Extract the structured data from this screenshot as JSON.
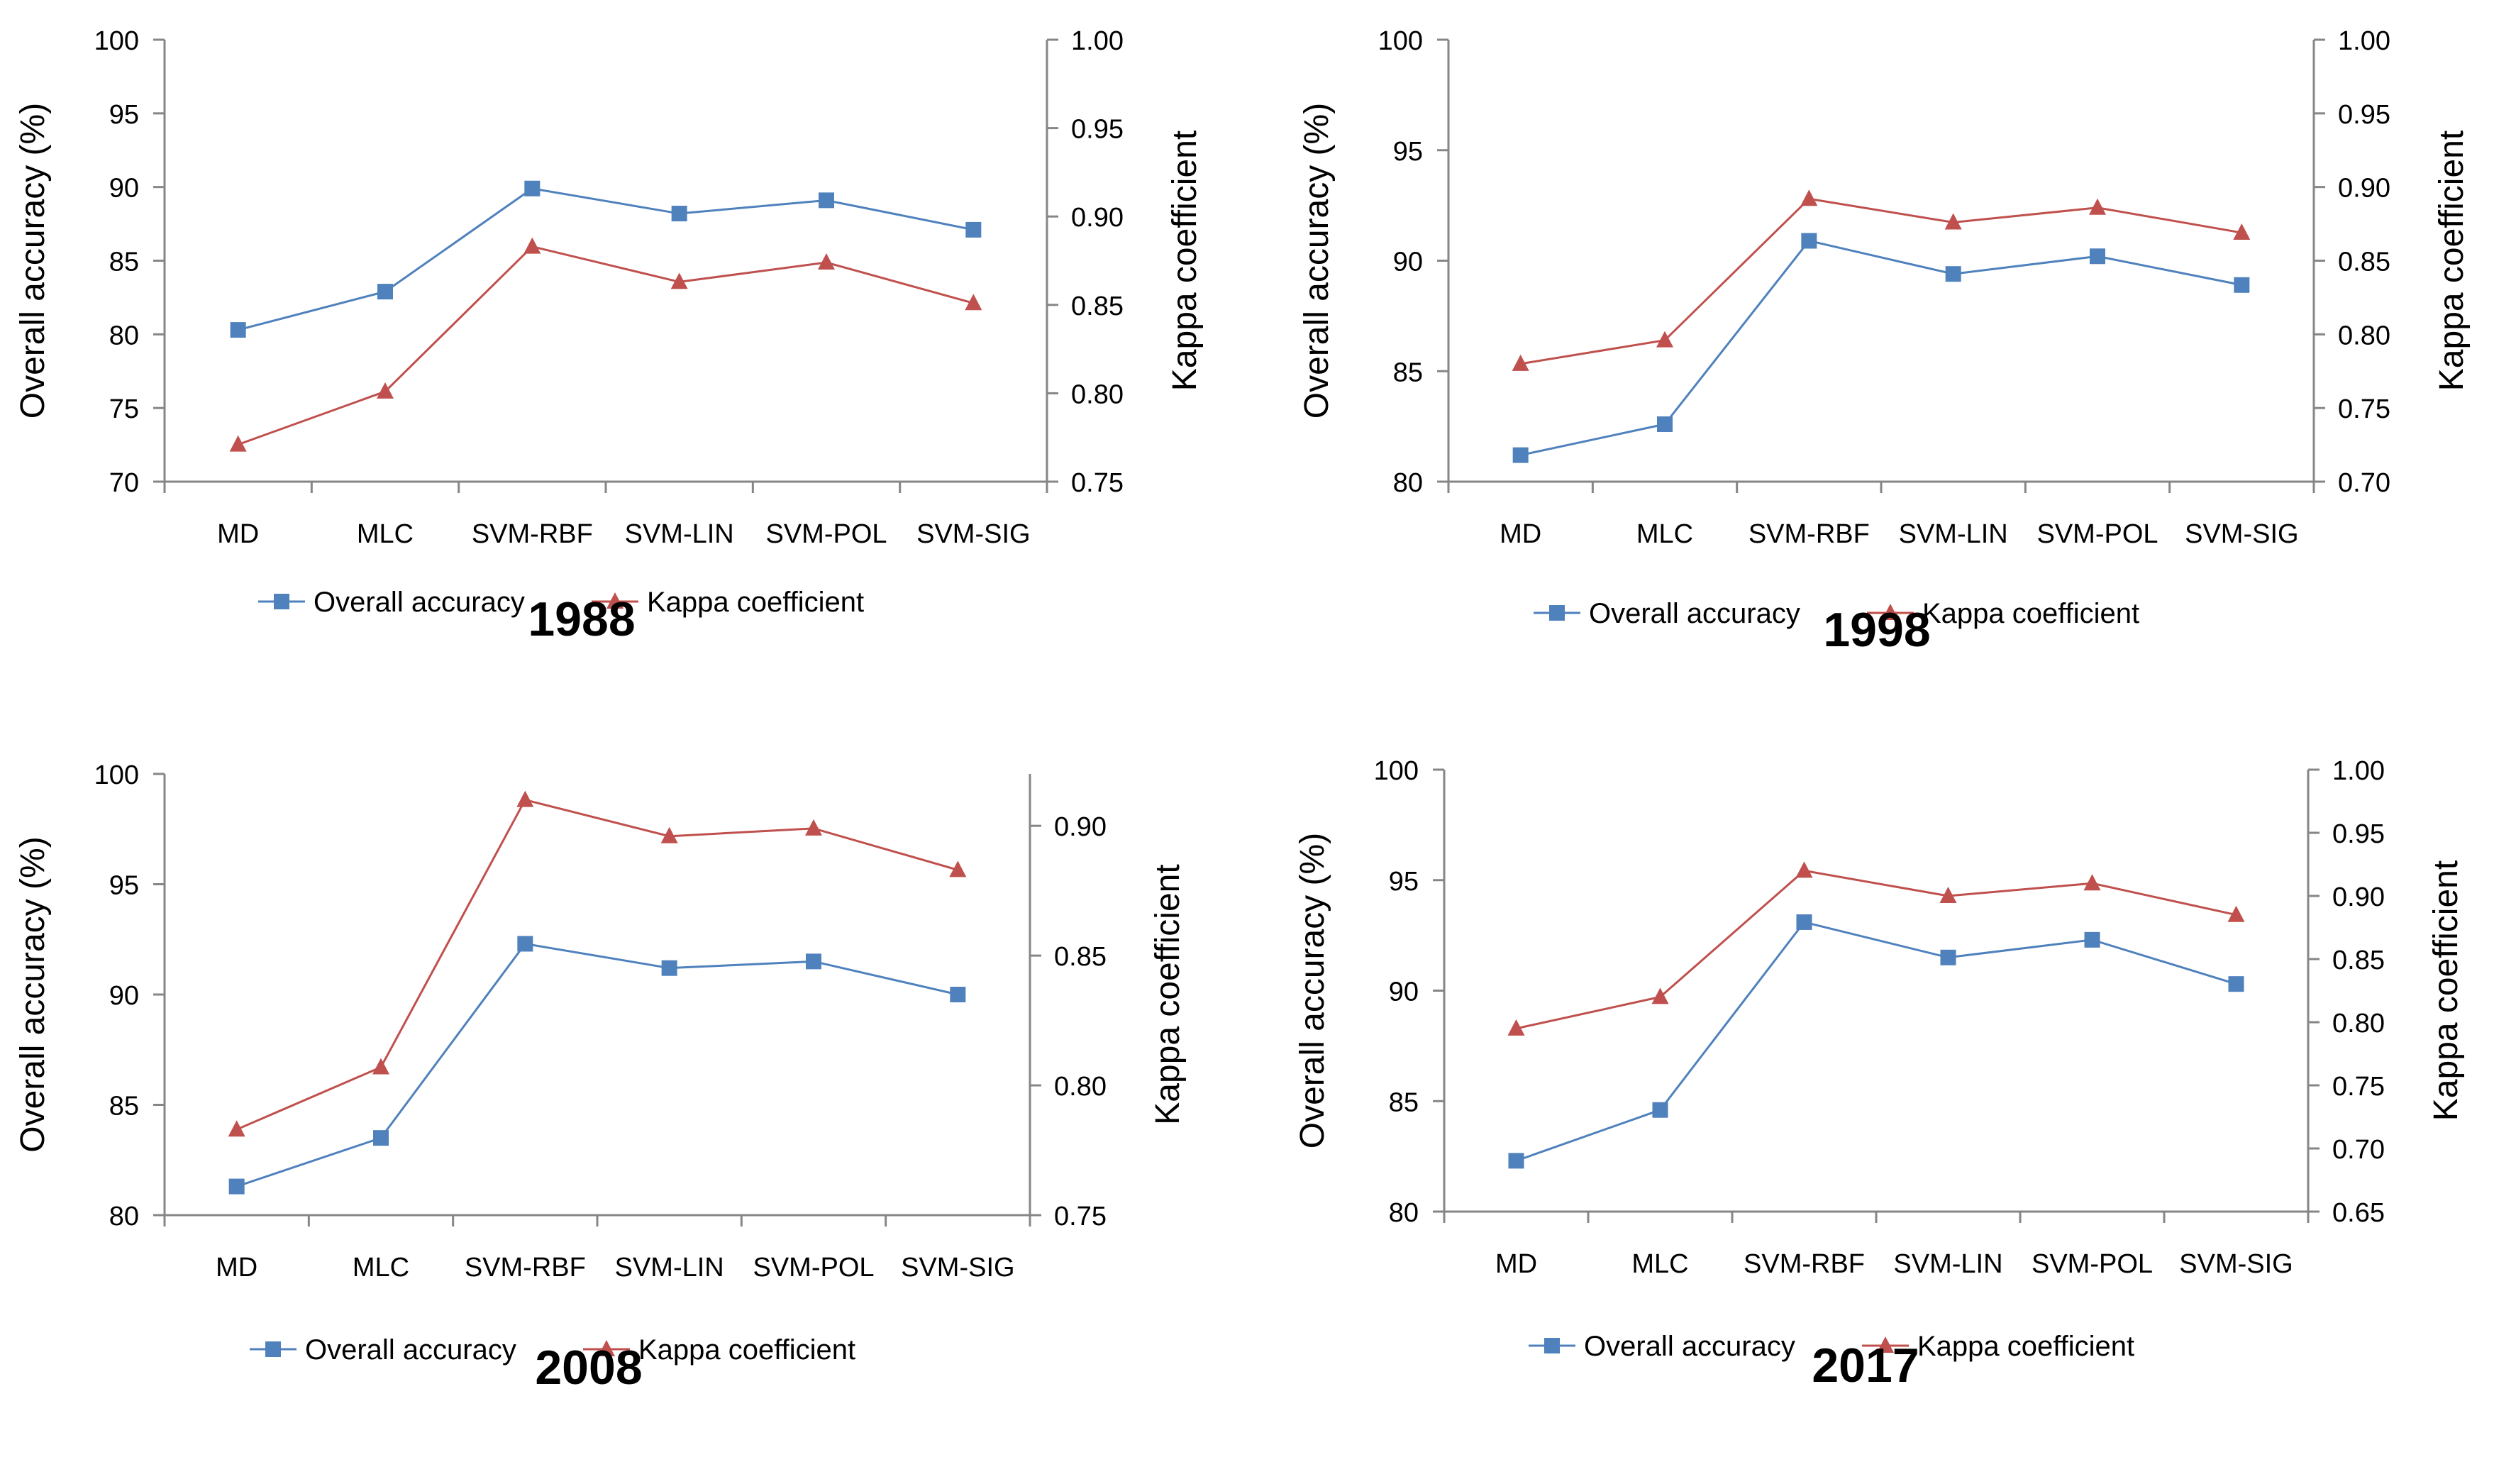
{
  "colors": {
    "accuracy": "#4F81BD",
    "kappa": "#C0504D",
    "axis": "#868686",
    "text": "#000000"
  },
  "chart_data": [
    {
      "type": "line",
      "title": "1988",
      "categories": [
        "MD",
        "MLC",
        "SVM-RBF",
        "SVM-LIN",
        "SVM-POL",
        "SVM-SIG"
      ],
      "ylabel": "Overall accuracy (%)",
      "y2label": "Kappa coefficient",
      "ylim": [
        70,
        100
      ],
      "yticks": [
        70,
        75,
        80,
        85,
        90,
        95,
        100
      ],
      "y2lim": [
        0.75,
        1.0
      ],
      "y2ticks": [
        "0.75",
        "0.80",
        "0.85",
        "0.90",
        "0.95",
        "1.00"
      ],
      "legend_position": "bottom",
      "series": [
        {
          "name": "Overall accuracy",
          "axis": "left",
          "marker": "square",
          "values": [
            80.3,
            82.9,
            89.9,
            88.2,
            89.1,
            87.1
          ]
        },
        {
          "name": "Kappa coefficient",
          "axis": "right",
          "marker": "triangle",
          "values": [
            0.771,
            0.801,
            0.883,
            0.863,
            0.874,
            0.851
          ]
        }
      ]
    },
    {
      "type": "line",
      "title": "1998",
      "categories": [
        "MD",
        "MLC",
        "SVM-RBF",
        "SVM-LIN",
        "SVM-POL",
        "SVM-SIG"
      ],
      "ylabel": "Overall accuracy (%)",
      "y2label": "Kappa coefficient",
      "ylim": [
        80,
        100
      ],
      "yticks": [
        80,
        85,
        90,
        95,
        100
      ],
      "y2lim": [
        0.7,
        1.0
      ],
      "y2ticks": [
        "0.70",
        "0.75",
        "0.80",
        "0.85",
        "0.90",
        "0.95",
        "1.00"
      ],
      "legend_position": "bottom",
      "series": [
        {
          "name": "Overall accuracy",
          "axis": "left",
          "marker": "square",
          "values": [
            81.2,
            82.6,
            90.9,
            89.4,
            90.2,
            88.9
          ]
        },
        {
          "name": "Kappa coefficient",
          "axis": "right",
          "marker": "triangle",
          "values": [
            0.78,
            0.796,
            0.892,
            0.876,
            0.886,
            0.869
          ]
        }
      ]
    },
    {
      "type": "line",
      "title": "2008",
      "categories": [
        "MD",
        "MLC",
        "SVM-RBF",
        "SVM-LIN",
        "SVM-POL",
        "SVM-SIG"
      ],
      "ylabel": "Overall accuracy (%)",
      "y2label": "Kappa coefficient",
      "ylim": [
        80,
        100
      ],
      "yticks": [
        80,
        85,
        90,
        95,
        100
      ],
      "y2lim": [
        0.75,
        0.92
      ],
      "y2ticks": [
        "0.75",
        "0.80",
        "0.85",
        "0.90"
      ],
      "legend_position": "bottom",
      "series": [
        {
          "name": "Overall accuracy",
          "axis": "left",
          "marker": "square",
          "values": [
            81.3,
            83.5,
            92.3,
            91.2,
            91.5,
            90.0
          ]
        },
        {
          "name": "Kappa coefficient",
          "axis": "right",
          "marker": "triangle",
          "values": [
            0.783,
            0.807,
            0.91,
            0.896,
            0.899,
            0.883
          ]
        }
      ]
    },
    {
      "type": "line",
      "title": "2017",
      "categories": [
        "MD",
        "MLC",
        "SVM-RBF",
        "SVM-LIN",
        "SVM-POL",
        "SVM-SIG"
      ],
      "ylabel": "Overall accuracy (%)",
      "y2label": "Kappa coefficient",
      "ylim": [
        80,
        100
      ],
      "yticks": [
        80,
        85,
        90,
        95,
        100
      ],
      "y2lim": [
        0.65,
        1.0
      ],
      "y2ticks": [
        "0.65",
        "0.70",
        "0.75",
        "0.80",
        "0.85",
        "0.90",
        "0.95",
        "1.00"
      ],
      "legend_position": "bottom",
      "series": [
        {
          "name": "Overall accuracy",
          "axis": "left",
          "marker": "square",
          "values": [
            82.3,
            84.6,
            93.1,
            91.5,
            92.3,
            90.3
          ]
        },
        {
          "name": "Kappa coefficient",
          "axis": "right",
          "marker": "triangle",
          "values": [
            0.795,
            0.82,
            0.92,
            0.9,
            0.91,
            0.885
          ]
        }
      ]
    }
  ]
}
